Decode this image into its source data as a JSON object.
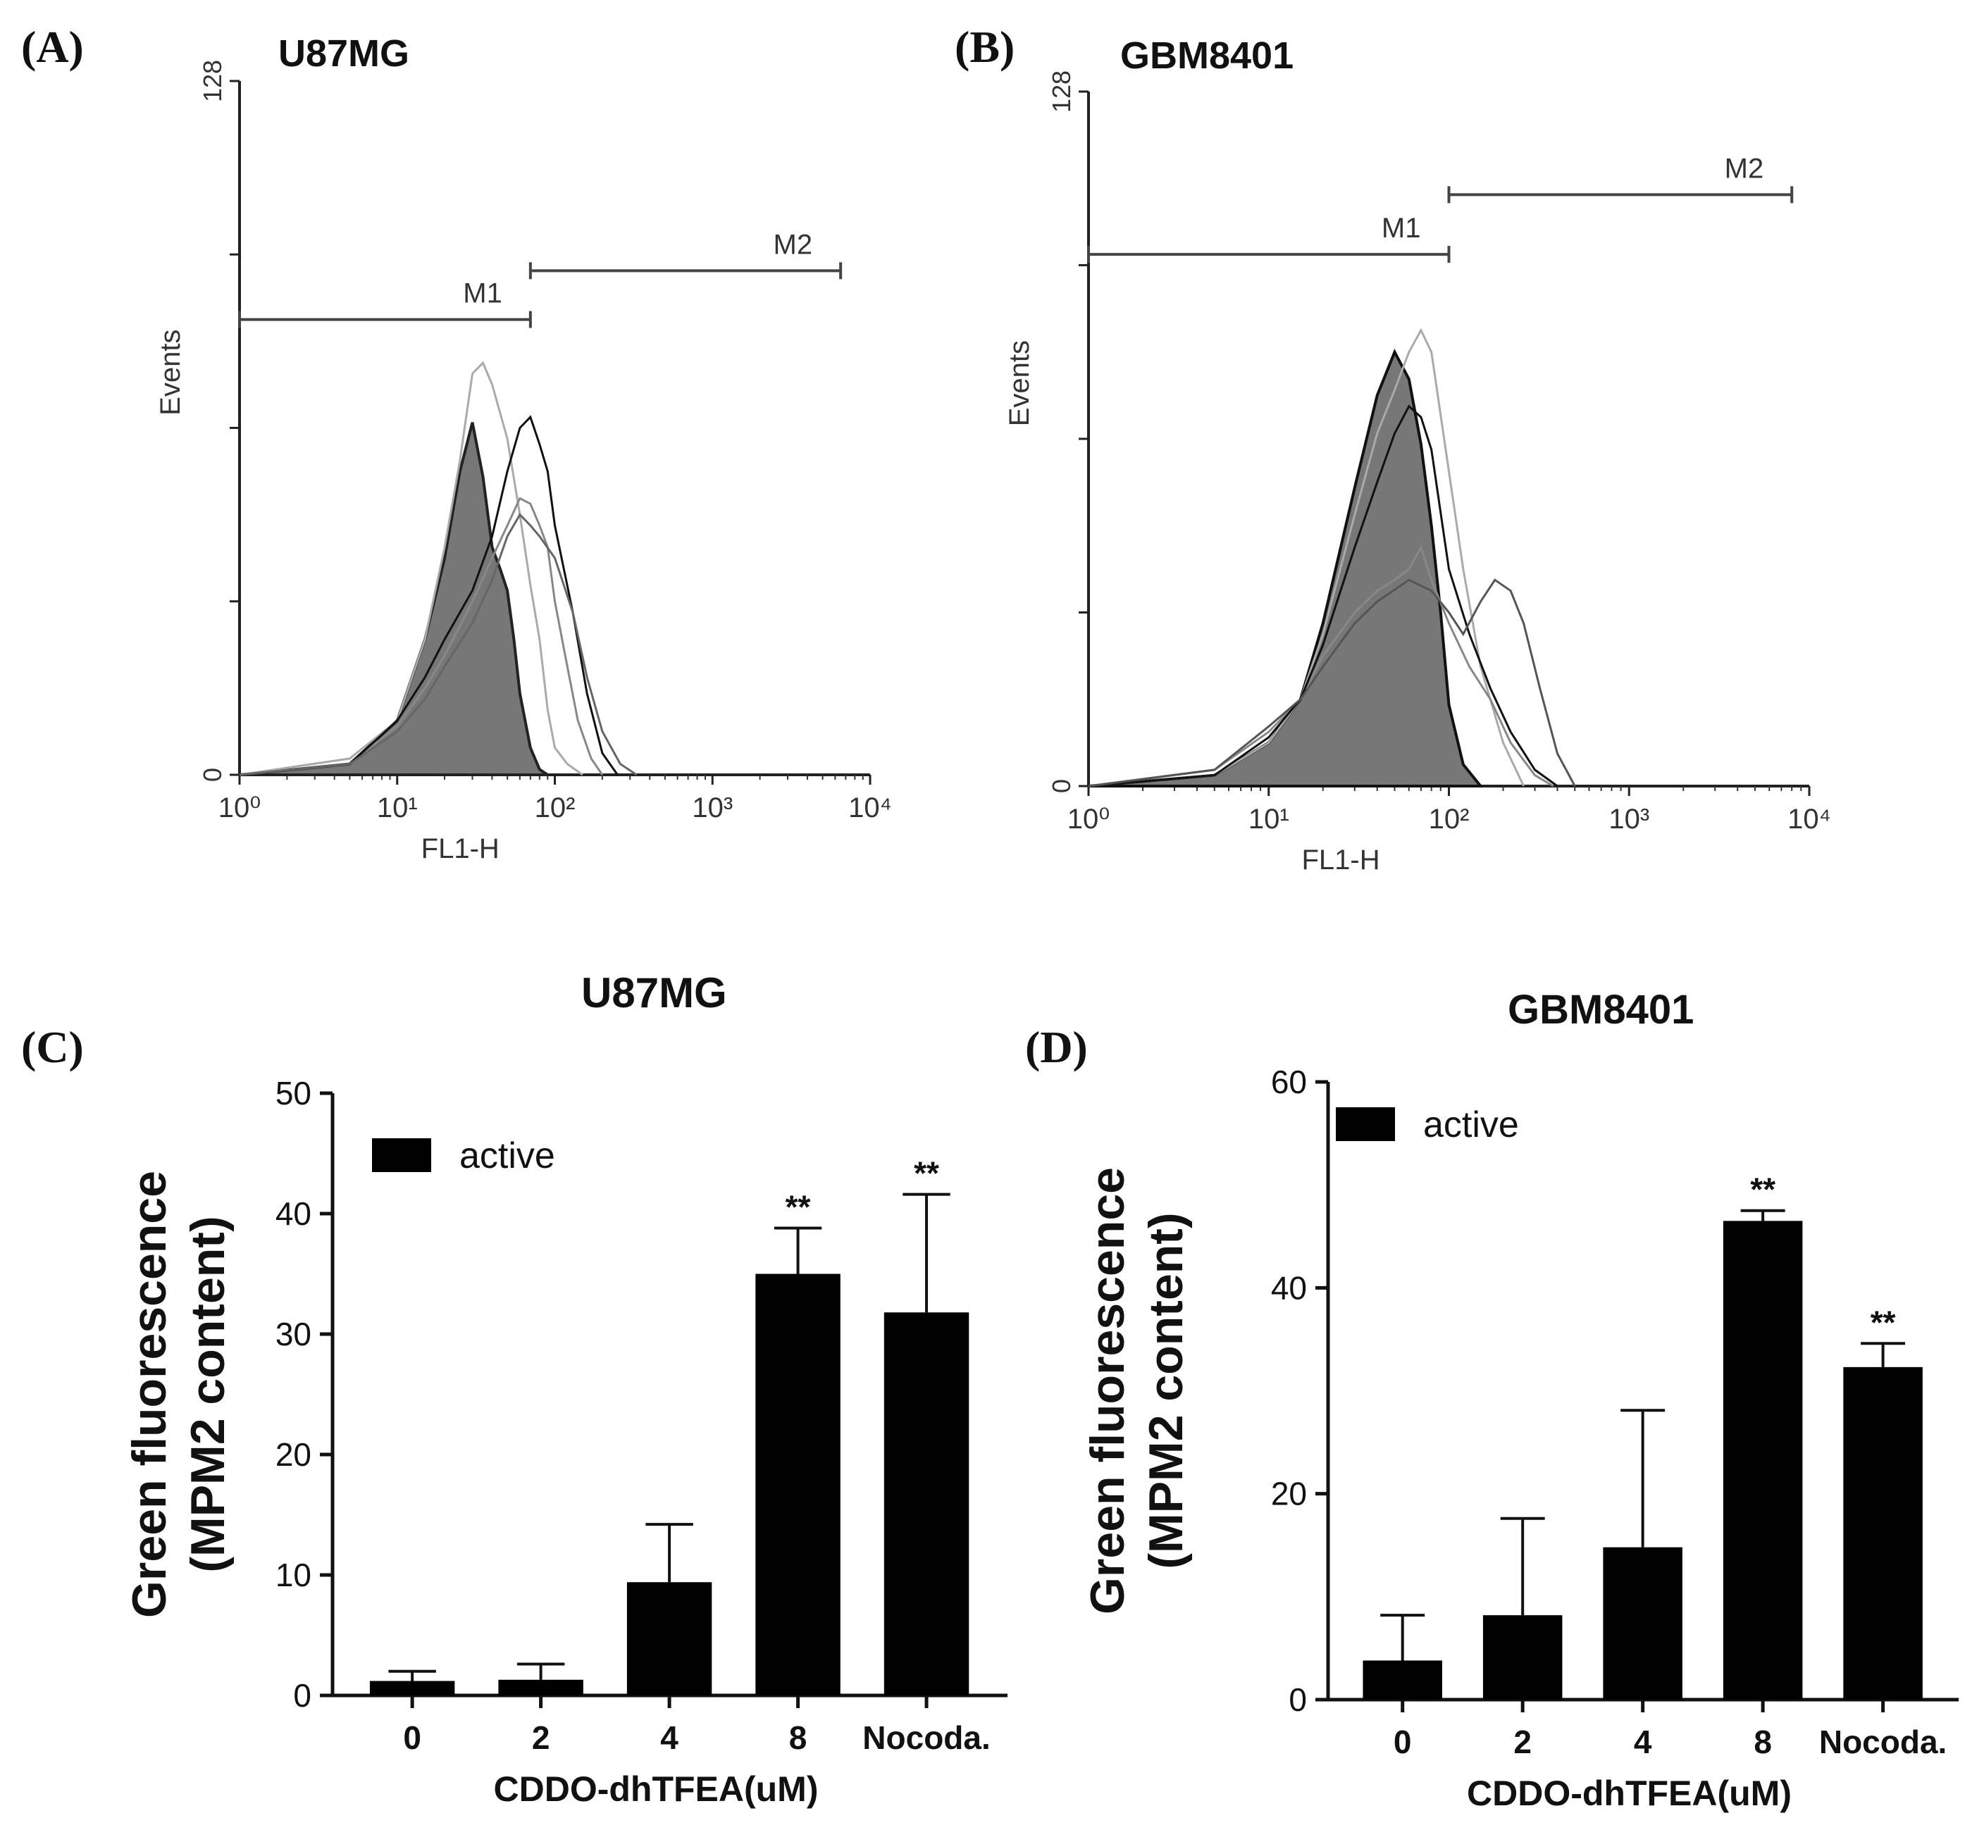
{
  "chart_data": [
    {
      "type": "histogram",
      "panel": "(A)",
      "title": "U87MG",
      "xlabel": "FL1-H",
      "ylabel": "Events",
      "xscale": "log",
      "xlim": [
        1,
        10000
      ],
      "ylim": [
        0,
        128
      ],
      "xticks": [
        {
          "value": 1,
          "label": "10⁰"
        },
        {
          "value": 10,
          "label": "10¹"
        },
        {
          "value": 100,
          "label": "10²"
        },
        {
          "value": 1000,
          "label": "10³"
        },
        {
          "value": 10000,
          "label": "10⁴"
        }
      ],
      "yticks": [
        {
          "value": 0,
          "label": "0"
        },
        {
          "value": 128,
          "label": "128"
        }
      ],
      "markers": [
        {
          "label": "M1",
          "x_start": 1,
          "x_end": 70,
          "y": 84
        },
        {
          "label": "M2",
          "x_start": 70,
          "x_end": 6500,
          "y": 93
        }
      ],
      "series": [
        {
          "name": "filled",
          "fill": "#777777",
          "stroke": "#222222",
          "x": [
            1,
            5,
            10,
            15,
            20,
            25,
            30,
            35,
            40,
            45,
            50,
            55,
            60,
            70,
            80,
            90
          ],
          "y": [
            0,
            2,
            10,
            25,
            40,
            56,
            65,
            55,
            42,
            38,
            34,
            25,
            15,
            5,
            1,
            0
          ]
        },
        {
          "name": "light-1",
          "stroke": "#aaaaaa",
          "x": [
            1,
            5,
            10,
            15,
            20,
            25,
            30,
            35,
            40,
            50,
            60,
            70,
            80,
            90,
            100,
            120,
            150
          ],
          "y": [
            0,
            3,
            10,
            25,
            42,
            58,
            74,
            76,
            72,
            62,
            48,
            35,
            25,
            12,
            5,
            2,
            0
          ]
        },
        {
          "name": "gray-2",
          "stroke": "#888888",
          "x": [
            1,
            5,
            10,
            15,
            20,
            30,
            40,
            50,
            60,
            70,
            80,
            90,
            100,
            120,
            140,
            170,
            200
          ],
          "y": [
            0,
            2,
            9,
            16,
            22,
            32,
            40,
            46,
            51,
            50,
            46,
            42,
            32,
            20,
            10,
            3,
            0
          ]
        },
        {
          "name": "dark-3",
          "stroke": "#111111",
          "x": [
            1,
            5,
            10,
            15,
            20,
            30,
            40,
            50,
            60,
            70,
            80,
            90,
            100,
            130,
            160,
            200,
            250
          ],
          "y": [
            0,
            2,
            10,
            18,
            25,
            34,
            44,
            56,
            64,
            66,
            61,
            56,
            46,
            30,
            15,
            4,
            0
          ]
        },
        {
          "name": "gray-4",
          "stroke": "#666666",
          "x": [
            1,
            5,
            10,
            15,
            20,
            30,
            40,
            50,
            60,
            70,
            80,
            100,
            130,
            160,
            200,
            260,
            330
          ],
          "y": [
            0,
            2,
            8,
            14,
            20,
            28,
            36,
            44,
            48,
            46,
            44,
            40,
            30,
            18,
            8,
            2,
            0
          ]
        }
      ]
    },
    {
      "type": "histogram",
      "panel": "(B)",
      "title": "GBM8401",
      "xlabel": "FL1-H",
      "ylabel": "Events",
      "xscale": "log",
      "xlim": [
        1,
        10000
      ],
      "ylim": [
        0,
        128
      ],
      "xticks": [
        {
          "value": 1,
          "label": "10⁰"
        },
        {
          "value": 10,
          "label": "10¹"
        },
        {
          "value": 100,
          "label": "10²"
        },
        {
          "value": 1000,
          "label": "10³"
        },
        {
          "value": 10000,
          "label": "10⁴"
        }
      ],
      "yticks": [
        {
          "value": 0,
          "label": "0"
        },
        {
          "value": 128,
          "label": "128"
        }
      ],
      "markers": [
        {
          "label": "M1",
          "x_start": 1,
          "x_end": 100,
          "y": 98
        },
        {
          "label": "M2",
          "x_start": 100,
          "x_end": 8000,
          "y": 109
        }
      ],
      "series": [
        {
          "name": "filled",
          "fill": "#777777",
          "stroke": "#111111",
          "x": [
            1,
            5,
            10,
            15,
            20,
            30,
            40,
            50,
            60,
            70,
            80,
            90,
            100,
            120,
            150
          ],
          "y": [
            0,
            2,
            8,
            16,
            30,
            55,
            72,
            80,
            75,
            63,
            48,
            32,
            15,
            4,
            0
          ]
        },
        {
          "name": "light-1",
          "stroke": "#aaaaaa",
          "x": [
            1,
            5,
            10,
            15,
            20,
            30,
            40,
            50,
            60,
            70,
            80,
            100,
            120,
            150,
            200,
            260
          ],
          "y": [
            0,
            2,
            8,
            16,
            28,
            50,
            65,
            73,
            80,
            84,
            80,
            58,
            40,
            22,
            8,
            0
          ]
        },
        {
          "name": "gray-2",
          "stroke": "#888888",
          "x": [
            1,
            5,
            10,
            15,
            20,
            30,
            40,
            50,
            60,
            70,
            80,
            100,
            130,
            170,
            220,
            300,
            380
          ],
          "y": [
            0,
            3,
            10,
            16,
            24,
            32,
            36,
            38,
            40,
            44,
            38,
            30,
            22,
            16,
            8,
            2,
            0
          ]
        },
        {
          "name": "dark-3",
          "stroke": "#111111",
          "x": [
            1,
            5,
            10,
            15,
            20,
            30,
            40,
            50,
            60,
            70,
            80,
            100,
            130,
            170,
            220,
            300,
            400
          ],
          "y": [
            0,
            2,
            9,
            16,
            26,
            44,
            56,
            65,
            70,
            68,
            62,
            40,
            28,
            18,
            10,
            3,
            0
          ]
        },
        {
          "name": "gray-4",
          "stroke": "#555555",
          "x": [
            1,
            5,
            10,
            15,
            20,
            30,
            40,
            60,
            80,
            100,
            120,
            150,
            180,
            220,
            260,
            320,
            400,
            500
          ],
          "y": [
            0,
            3,
            11,
            16,
            22,
            30,
            34,
            38,
            36,
            32,
            28,
            34,
            38,
            36,
            30,
            18,
            6,
            0
          ]
        }
      ]
    },
    {
      "type": "bar",
      "panel": "(C)",
      "title": "U87MG",
      "legend": "active",
      "xlabel": "CDDO-dhTFEA(uM)",
      "ylabel_line1": "Green fluorescence",
      "ylabel_line2": "(MPM2 content)",
      "ylim": [
        0,
        50
      ],
      "yticks": [
        "0",
        "10",
        "20",
        "30",
        "40",
        "50"
      ],
      "categories": [
        "0",
        "2",
        "4",
        "8",
        "Nocoda."
      ],
      "values": [
        1.2,
        1.3,
        9.4,
        35,
        31.8
      ],
      "errors": [
        0.8,
        1.3,
        4.8,
        3.8,
        9.8
      ],
      "annotations": [
        "",
        "",
        "",
        "**",
        "**"
      ]
    },
    {
      "type": "bar",
      "panel": "(D)",
      "title": "GBM8401",
      "legend": "active",
      "xlabel": "CDDO-dhTFEA(uM)",
      "ylabel_line1": "Green fluorescence",
      "ylabel_line2": "(MPM2 content)",
      "ylim": [
        0,
        60
      ],
      "yticks": [
        "0",
        "20",
        "40",
        "60"
      ],
      "categories": [
        "0",
        "2",
        "4",
        "8",
        "Nocoda."
      ],
      "values": [
        3.8,
        8.2,
        14.8,
        46.5,
        32.3
      ],
      "errors": [
        4.4,
        9.4,
        13.3,
        1.0,
        2.3
      ],
      "annotations": [
        "",
        "",
        "",
        "**",
        "**"
      ]
    }
  ]
}
